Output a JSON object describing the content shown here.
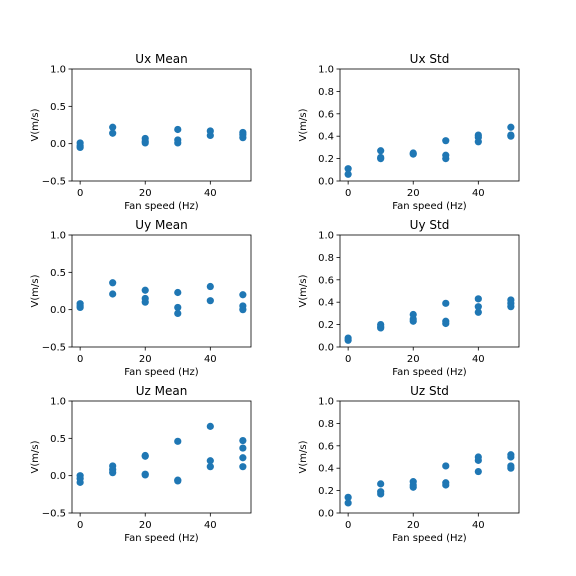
{
  "chart_data": [
    {
      "type": "scatter",
      "title": "Ux Mean",
      "xlabel": "Fan speed (Hz)",
      "ylabel": "V(m/s)",
      "xlim": [
        -2.5,
        52.5
      ],
      "ylim": [
        -0.5,
        1.0
      ],
      "xticks": [
        0,
        20,
        40
      ],
      "yticks": [
        -0.5,
        0.0,
        0.5,
        1.0
      ],
      "ytick_labels": [
        "−0.5",
        "0.0",
        "0.5",
        "1.0"
      ],
      "series": [
        {
          "color": "#1f77b4",
          "points": [
            [
              0,
              0.01
            ],
            [
              0,
              -0.03
            ],
            [
              0,
              -0.05
            ],
            [
              10,
              0.22
            ],
            [
              10,
              0.14
            ],
            [
              20,
              0.07
            ],
            [
              20,
              0.03
            ],
            [
              20,
              0.01
            ],
            [
              30,
              0.19
            ],
            [
              30,
              0.05
            ],
            [
              30,
              0.01
            ],
            [
              40,
              0.17
            ],
            [
              40,
              0.11
            ],
            [
              50,
              0.15
            ],
            [
              50,
              0.12
            ],
            [
              50,
              0.08
            ]
          ]
        }
      ]
    },
    {
      "type": "scatter",
      "title": "Ux Std",
      "xlabel": "Fan speed (Hz)",
      "ylabel": "V(m/s)",
      "xlim": [
        -2.5,
        52.5
      ],
      "ylim": [
        0.0,
        1.0
      ],
      "xticks": [
        0,
        20,
        40
      ],
      "yticks": [
        0.0,
        0.2,
        0.4,
        0.6,
        0.8,
        1.0
      ],
      "ytick_labels": [
        "0.0",
        "0.2",
        "0.4",
        "0.6",
        "0.8",
        "1.0"
      ],
      "series": [
        {
          "color": "#1f77b4",
          "points": [
            [
              0,
              0.11
            ],
            [
              0,
              0.06
            ],
            [
              10,
              0.27
            ],
            [
              10,
              0.21
            ],
            [
              10,
              0.2
            ],
            [
              20,
              0.25
            ],
            [
              20,
              0.24
            ],
            [
              30,
              0.36
            ],
            [
              30,
              0.23
            ],
            [
              30,
              0.2
            ],
            [
              40,
              0.41
            ],
            [
              40,
              0.39
            ],
            [
              40,
              0.35
            ],
            [
              50,
              0.48
            ],
            [
              50,
              0.41
            ],
            [
              50,
              0.4
            ]
          ]
        }
      ]
    },
    {
      "type": "scatter",
      "title": "Uy Mean",
      "xlabel": "Fan speed (Hz)",
      "ylabel": "V(m/s)",
      "xlim": [
        -2.5,
        52.5
      ],
      "ylim": [
        -0.5,
        1.0
      ],
      "xticks": [
        0,
        20,
        40
      ],
      "yticks": [
        -0.5,
        0.0,
        0.5,
        1.0
      ],
      "ytick_labels": [
        "−0.5",
        "0.0",
        "0.5",
        "1.0"
      ],
      "series": [
        {
          "color": "#1f77b4",
          "points": [
            [
              0,
              0.08
            ],
            [
              0,
              0.05
            ],
            [
              0,
              0.03
            ],
            [
              10,
              0.36
            ],
            [
              10,
              0.21
            ],
            [
              20,
              0.26
            ],
            [
              20,
              0.15
            ],
            [
              20,
              0.1
            ],
            [
              30,
              0.23
            ],
            [
              30,
              0.03
            ],
            [
              30,
              -0.05
            ],
            [
              40,
              0.31
            ],
            [
              40,
              0.12
            ],
            [
              50,
              0.2
            ],
            [
              50,
              0.05
            ],
            [
              50,
              0.0
            ]
          ]
        }
      ]
    },
    {
      "type": "scatter",
      "title": "Uy Std",
      "xlabel": "Fan speed (Hz)",
      "ylabel": "V(m/s)",
      "xlim": [
        -2.5,
        52.5
      ],
      "ylim": [
        0.0,
        1.0
      ],
      "xticks": [
        0,
        20,
        40
      ],
      "yticks": [
        0.0,
        0.2,
        0.4,
        0.6,
        0.8,
        1.0
      ],
      "ytick_labels": [
        "0.0",
        "0.2",
        "0.4",
        "0.6",
        "0.8",
        "1.0"
      ],
      "series": [
        {
          "color": "#1f77b4",
          "points": [
            [
              0,
              0.08
            ],
            [
              0,
              0.06
            ],
            [
              10,
              0.2
            ],
            [
              10,
              0.18
            ],
            [
              10,
              0.17
            ],
            [
              20,
              0.29
            ],
            [
              20,
              0.25
            ],
            [
              20,
              0.23
            ],
            [
              30,
              0.39
            ],
            [
              30,
              0.23
            ],
            [
              30,
              0.21
            ],
            [
              40,
              0.43
            ],
            [
              40,
              0.36
            ],
            [
              40,
              0.31
            ],
            [
              50,
              0.42
            ],
            [
              50,
              0.39
            ],
            [
              50,
              0.36
            ]
          ]
        }
      ]
    },
    {
      "type": "scatter",
      "title": "Uz Mean",
      "xlabel": "Fan speed (Hz)",
      "ylabel": "V(m/s)",
      "xlim": [
        -2.5,
        52.5
      ],
      "ylim": [
        -0.5,
        1.0
      ],
      "xticks": [
        0,
        20,
        40
      ],
      "yticks": [
        -0.5,
        0.0,
        0.5,
        1.0
      ],
      "ytick_labels": [
        "−0.5",
        "0.0",
        "0.5",
        "1.0"
      ],
      "series": [
        {
          "color": "#1f77b4",
          "points": [
            [
              0,
              0.0
            ],
            [
              0,
              -0.04
            ],
            [
              0,
              -0.09
            ],
            [
              10,
              0.13
            ],
            [
              10,
              0.08
            ],
            [
              10,
              0.04
            ],
            [
              20,
              0.27
            ],
            [
              20,
              0.26
            ],
            [
              20,
              0.02
            ],
            [
              20,
              0.01
            ],
            [
              30,
              0.46
            ],
            [
              30,
              -0.06
            ],
            [
              30,
              -0.07
            ],
            [
              40,
              0.66
            ],
            [
              40,
              0.2
            ],
            [
              40,
              0.12
            ],
            [
              50,
              0.47
            ],
            [
              50,
              0.37
            ],
            [
              50,
              0.24
            ],
            [
              50,
              0.12
            ]
          ]
        }
      ]
    },
    {
      "type": "scatter",
      "title": "Uz Std",
      "xlabel": "Fan speed (Hz)",
      "ylabel": "V(m/s)",
      "xlim": [
        -2.5,
        52.5
      ],
      "ylim": [
        0.0,
        1.0
      ],
      "xticks": [
        0,
        20,
        40
      ],
      "yticks": [
        0.0,
        0.2,
        0.4,
        0.6,
        0.8,
        1.0
      ],
      "ytick_labels": [
        "0.0",
        "0.2",
        "0.4",
        "0.6",
        "0.8",
        "1.0"
      ],
      "series": [
        {
          "color": "#1f77b4",
          "points": [
            [
              0,
              0.14
            ],
            [
              0,
              0.09
            ],
            [
              10,
              0.26
            ],
            [
              10,
              0.19
            ],
            [
              10,
              0.17
            ],
            [
              20,
              0.28
            ],
            [
              20,
              0.25
            ],
            [
              20,
              0.23
            ],
            [
              30,
              0.42
            ],
            [
              30,
              0.27
            ],
            [
              30,
              0.25
            ],
            [
              40,
              0.5
            ],
            [
              40,
              0.47
            ],
            [
              40,
              0.37
            ],
            [
              50,
              0.52
            ],
            [
              50,
              0.5
            ],
            [
              50,
              0.42
            ],
            [
              50,
              0.4
            ]
          ]
        }
      ]
    }
  ]
}
